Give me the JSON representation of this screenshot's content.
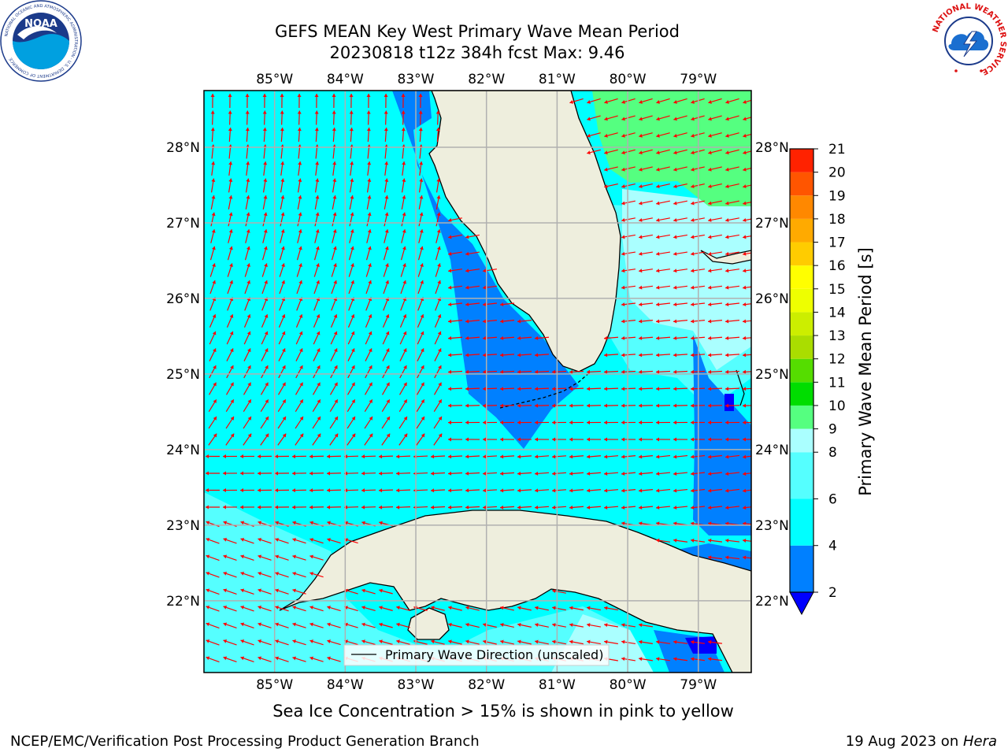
{
  "title": {
    "line1": "GEFS MEAN Key West Primary Wave Mean Period",
    "line2": "20230818 t12z 384h fcst   Max: 9.46"
  },
  "logos": {
    "left": {
      "icon": "noaa-logo-icon",
      "ring_text": "NATIONAL OCEANIC AND ATMOSPHERIC ADMINISTRATION · U.S. DEPARTMENT OF COMMERCE",
      "center_text": "NOAA"
    },
    "right": {
      "icon": "nws-logo-icon",
      "ring_text": "NATIONAL WEATHER SERVICE"
    }
  },
  "map": {
    "lon_labels": [
      "85°W",
      "84°W",
      "83°W",
      "82°W",
      "81°W",
      "80°W",
      "79°W"
    ],
    "lon_values": [
      -85,
      -84,
      -83,
      -82,
      -81,
      -80,
      -79
    ],
    "lat_labels": [
      "28°N",
      "27°N",
      "26°N",
      "25°N",
      "24°N",
      "23°N",
      "22°N"
    ],
    "lat_values": [
      28,
      27,
      26,
      25,
      24,
      23,
      22
    ],
    "lon_range": [
      -86,
      -78.25
    ],
    "lat_range": [
      21.05,
      28.75
    ],
    "grid": true,
    "colors": {
      "ocean_default": "#00ffff",
      "land": "#eeeedd",
      "arrow": "#ff0000",
      "gridline": "#b0b0b0"
    },
    "legend": {
      "label": "Primary Wave Direction (unscaled)",
      "placement": "lower-center"
    }
  },
  "colorbar": {
    "label": "Primary Wave Mean Period [s]",
    "ticks": [
      "2",
      "4",
      "6",
      "8",
      "9",
      "10",
      "11",
      "12",
      "13",
      "14",
      "15",
      "16",
      "17",
      "18",
      "19",
      "20",
      "21"
    ],
    "bands": [
      {
        "from": 2,
        "to": 4,
        "color": "#0080ff"
      },
      {
        "from": 4,
        "to": 6,
        "color": "#00ffff"
      },
      {
        "from": 6,
        "to": 8,
        "color": "#55ffff"
      },
      {
        "from": 8,
        "to": 9,
        "color": "#aaffff"
      },
      {
        "from": 9,
        "to": 10,
        "color": "#55ff80"
      },
      {
        "from": 10,
        "to": 11,
        "color": "#00dd00"
      },
      {
        "from": 11,
        "to": 12,
        "color": "#55dd00"
      },
      {
        "from": 12,
        "to": 13,
        "color": "#aadd00"
      },
      {
        "from": 13,
        "to": 14,
        "color": "#ccee00"
      },
      {
        "from": 14,
        "to": 15,
        "color": "#eeff00"
      },
      {
        "from": 15,
        "to": 16,
        "color": "#ffff00"
      },
      {
        "from": 16,
        "to": 17,
        "color": "#ffcc00"
      },
      {
        "from": 17,
        "to": 18,
        "color": "#ffaa00"
      },
      {
        "from": 18,
        "to": 19,
        "color": "#ff8800"
      },
      {
        "from": 19,
        "to": 20,
        "color": "#ff5500"
      },
      {
        "from": 20,
        "to": 21,
        "color": "#ff2200"
      }
    ],
    "under_color": "#0000ff"
  },
  "caption": "Sea Ice Concentration > 15% is shown in pink to yellow",
  "footer": {
    "left": "NCEP/EMC/Verification Post Processing Product Generation Branch",
    "right_prefix": "19 Aug 2023 on ",
    "right_machine": "Hera"
  }
}
